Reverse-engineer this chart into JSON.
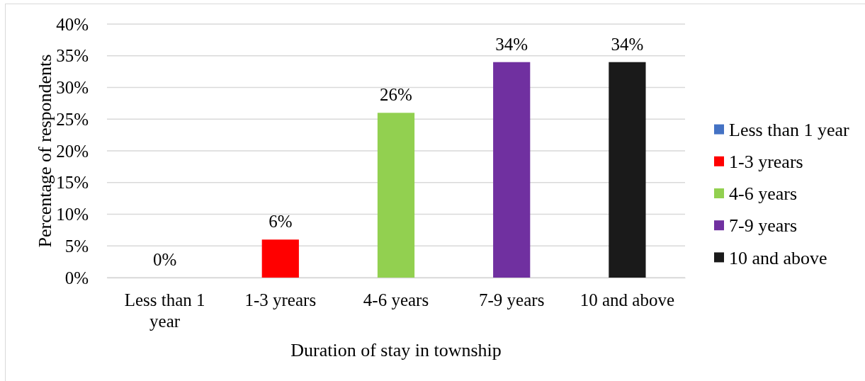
{
  "chart_data": {
    "type": "bar",
    "xlabel": "Duration of stay in township",
    "ylabel": "Percentage of respondents",
    "categories": [
      "Less than 1 year",
      "1-3 yrears",
      "4-6 years",
      "7-9 years",
      "10 and above"
    ],
    "series": [
      {
        "name": "Less than 1 year",
        "color": "#4472c4",
        "values": [
          0,
          null,
          null,
          null,
          null
        ],
        "value_labels": [
          "0%",
          null,
          null,
          null,
          null
        ]
      },
      {
        "name": "1-3 yrears",
        "color": "#ff0000",
        "values": [
          null,
          6,
          null,
          null,
          null
        ],
        "value_labels": [
          null,
          "6%",
          null,
          null,
          null
        ]
      },
      {
        "name": "4-6 years",
        "color": "#92d050",
        "values": [
          null,
          null,
          26,
          null,
          null
        ],
        "value_labels": [
          null,
          null,
          "26%",
          null,
          null
        ]
      },
      {
        "name": "7-9 years",
        "color": "#7030a0",
        "values": [
          null,
          null,
          null,
          34,
          null
        ],
        "value_labels": [
          null,
          null,
          null,
          "34%",
          null
        ]
      },
      {
        "name": "10 and above",
        "color": "#1a1a1a",
        "values": [
          null,
          null,
          null,
          null,
          34
        ],
        "value_labels": [
          null,
          null,
          null,
          null,
          "34%"
        ]
      }
    ],
    "stacked": true,
    "ylim": [
      0,
      40
    ],
    "yticks": [
      {
        "value": 0,
        "label": "0%"
      },
      {
        "value": 5,
        "label": "5%"
      },
      {
        "value": 10,
        "label": "10%"
      },
      {
        "value": 15,
        "label": "15%"
      },
      {
        "value": 20,
        "label": "20%"
      },
      {
        "value": 25,
        "label": "25%"
      },
      {
        "value": 30,
        "label": "30%"
      },
      {
        "value": 35,
        "label": "35%"
      },
      {
        "value": 40,
        "label": "40%"
      }
    ],
    "grid": "y",
    "legend": "right"
  }
}
